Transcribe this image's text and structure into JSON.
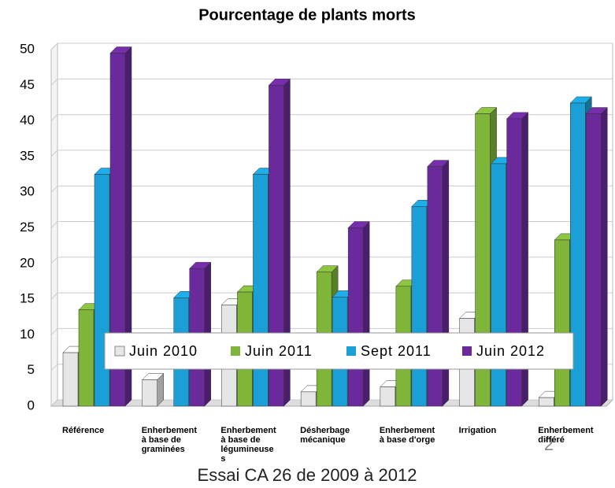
{
  "chart_data": {
    "type": "bar3d",
    "title": "Pourcentage de plants morts",
    "categories": [
      "Référence",
      "Enherbement\nà base de\ngraminées",
      "Enherbement\nà base de\nlégumineuse\ns",
      "Désherbage\nmécanique",
      "Enherbement\nà base d'orge",
      "Irrigation",
      "Enherbement\ndifféré"
    ],
    "series": [
      {
        "name": "Juin 2010",
        "color": "#e6e6e6",
        "values": [
          7.5,
          3.7,
          14.2,
          2,
          2.7,
          12.3,
          1.2
        ]
      },
      {
        "name": "Juin 2011",
        "color": "#7fb539",
        "values": [
          13.5,
          null,
          16,
          18.8,
          16.8,
          41,
          23.3
        ]
      },
      {
        "name": "Sept 2011",
        "color": "#1a9fd6",
        "values": [
          32.5,
          15.2,
          32.5,
          15.3,
          28,
          34,
          42.5
        ]
      },
      {
        "name": "Juin 2012",
        "color": "#6b2a9c",
        "values": [
          49.5,
          19.3,
          45,
          25,
          33.6,
          40.3,
          41
        ]
      }
    ],
    "ylim": [
      0,
      50
    ],
    "yticks": [
      0,
      5,
      10,
      15,
      20,
      25,
      30,
      35,
      40,
      45,
      50
    ],
    "grid": true,
    "page_number": "2",
    "footer": "Essai CA 26 de 2009 à 2012"
  }
}
